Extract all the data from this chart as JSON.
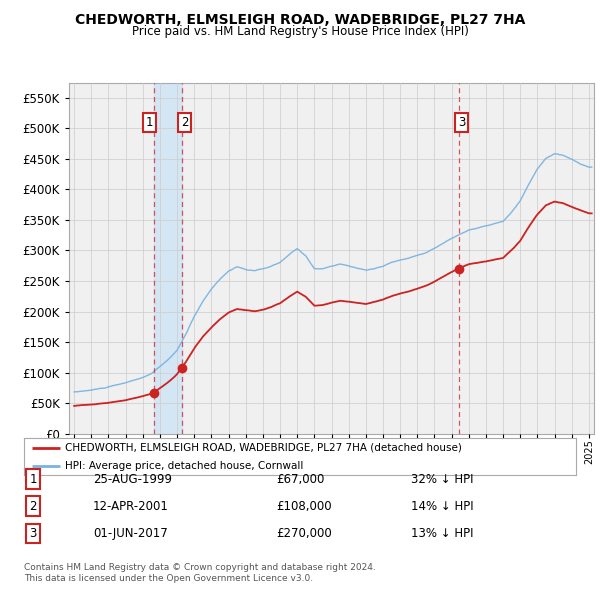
{
  "title": "CHEDWORTH, ELMSLEIGH ROAD, WADEBRIDGE, PL27 7HA",
  "subtitle": "Price paid vs. HM Land Registry's House Price Index (HPI)",
  "legend_label_red": "CHEDWORTH, ELMSLEIGH ROAD, WADEBRIDGE, PL27 7HA (detached house)",
  "legend_label_blue": "HPI: Average price, detached house, Cornwall",
  "footer1": "Contains HM Land Registry data © Crown copyright and database right 2024.",
  "footer2": "This data is licensed under the Open Government Licence v3.0.",
  "transactions": [
    {
      "num": "1",
      "date": "25-AUG-1999",
      "price": "£67,000",
      "pct": "32% ↓ HPI",
      "year": 1999.65,
      "value": 67000
    },
    {
      "num": "2",
      "date": "12-APR-2001",
      "price": "£108,000",
      "pct": "14% ↓ HPI",
      "year": 2001.28,
      "value": 108000
    },
    {
      "num": "3",
      "date": "01-JUN-2017",
      "price": "£270,000",
      "pct": "13% ↓ HPI",
      "year": 2017.42,
      "value": 270000
    }
  ],
  "ylim_max": 575000,
  "xlim_start": 1994.7,
  "xlim_end": 2025.3,
  "hpi_color": "#7ab3e0",
  "price_color": "#cc2222",
  "shade_color": "#d0e4f5",
  "grid_color": "#cccccc",
  "background_color": "#ffffff",
  "plot_bg_color": "#f0f0f0",
  "label_box_color": "#cc2222",
  "yticks": [
    0,
    50000,
    100000,
    150000,
    200000,
    250000,
    300000,
    350000,
    400000,
    450000,
    500000,
    550000
  ]
}
